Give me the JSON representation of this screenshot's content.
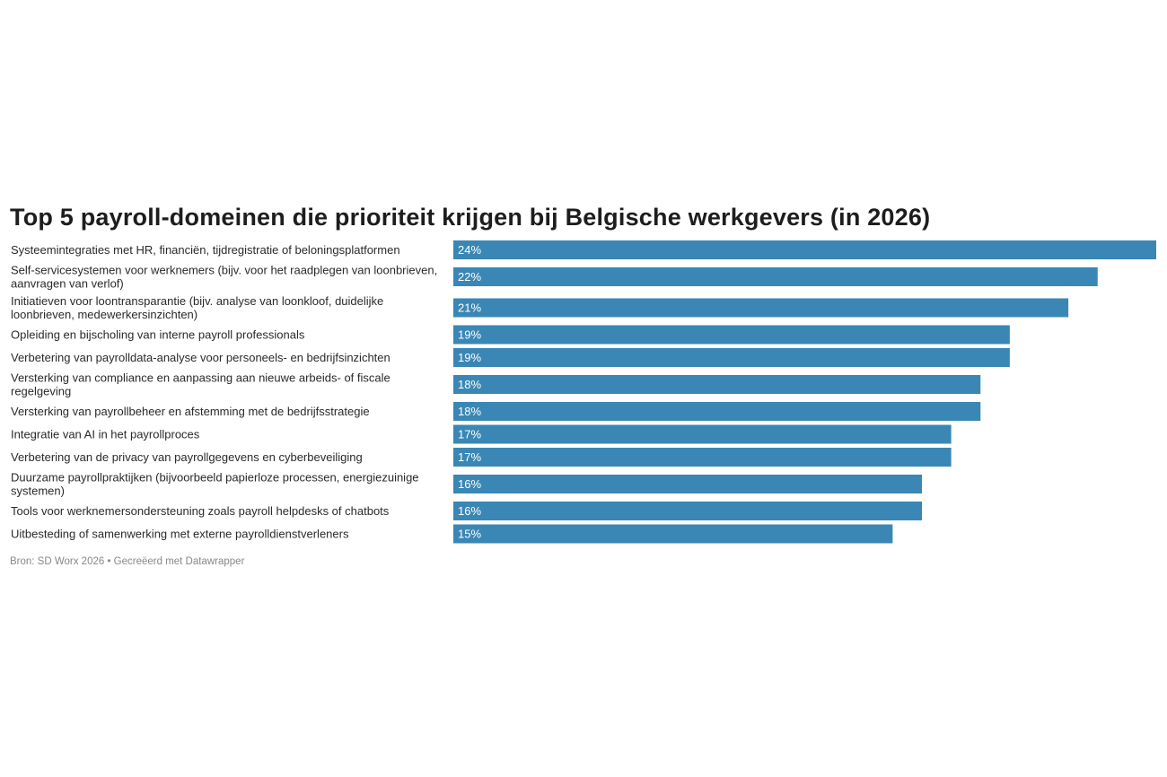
{
  "chart_data": {
    "type": "bar",
    "orientation": "horizontal",
    "title": "Top 5 payroll-domeinen die prioriteit krijgen bij Belgische werkgevers (in 2026)",
    "categories": [
      "Systeemintegraties met HR, financiën, tijdregistratie of beloningsplatformen",
      "Self-servicesystemen voor werknemers (bijv. voor het raadplegen van loonbrieven, aanvragen van verlof)",
      "Initiatieven voor loontransparantie (bijv. analyse van loonkloof, duidelijke loonbrieven, medewerkersinzichten)",
      "Opleiding en bijscholing van interne payroll professionals",
      "Verbetering van payrolldata-analyse voor personeels- en bedrijfsinzichten",
      "Versterking van compliance en aanpassing aan nieuwe arbeids- of fiscale regelgeving",
      "Versterking van payrollbeheer en afstemming met de bedrijfsstrategie",
      "Integratie van AI in het payrollproces",
      "Verbetering van de privacy van payrollgegevens en cyberbeveiliging",
      "Duurzame payrollpraktijken (bijvoorbeeld papierloze processen, energiezuinige systemen)",
      "Tools voor werknemersondersteuning zoals payroll helpdesks of chatbots",
      "Uitbesteding of samenwerking met externe payrolldienstverleners"
    ],
    "values": [
      24,
      22,
      21,
      19,
      19,
      18,
      18,
      17,
      17,
      16,
      16,
      15
    ],
    "value_labels": [
      "24%",
      "22%",
      "21%",
      "19%",
      "19%",
      "18%",
      "18%",
      "17%",
      "17%",
      "16%",
      "16%",
      "15%"
    ],
    "xlim": [
      0,
      24
    ],
    "unit": "%",
    "bar_color": "#3a87b5",
    "value_label_color": "#ffffff",
    "grid": false,
    "xlabel": "",
    "ylabel": ""
  },
  "footer": {
    "text": "Bron: SD Worx 2026 • Gecreëerd met Datawrapper"
  }
}
